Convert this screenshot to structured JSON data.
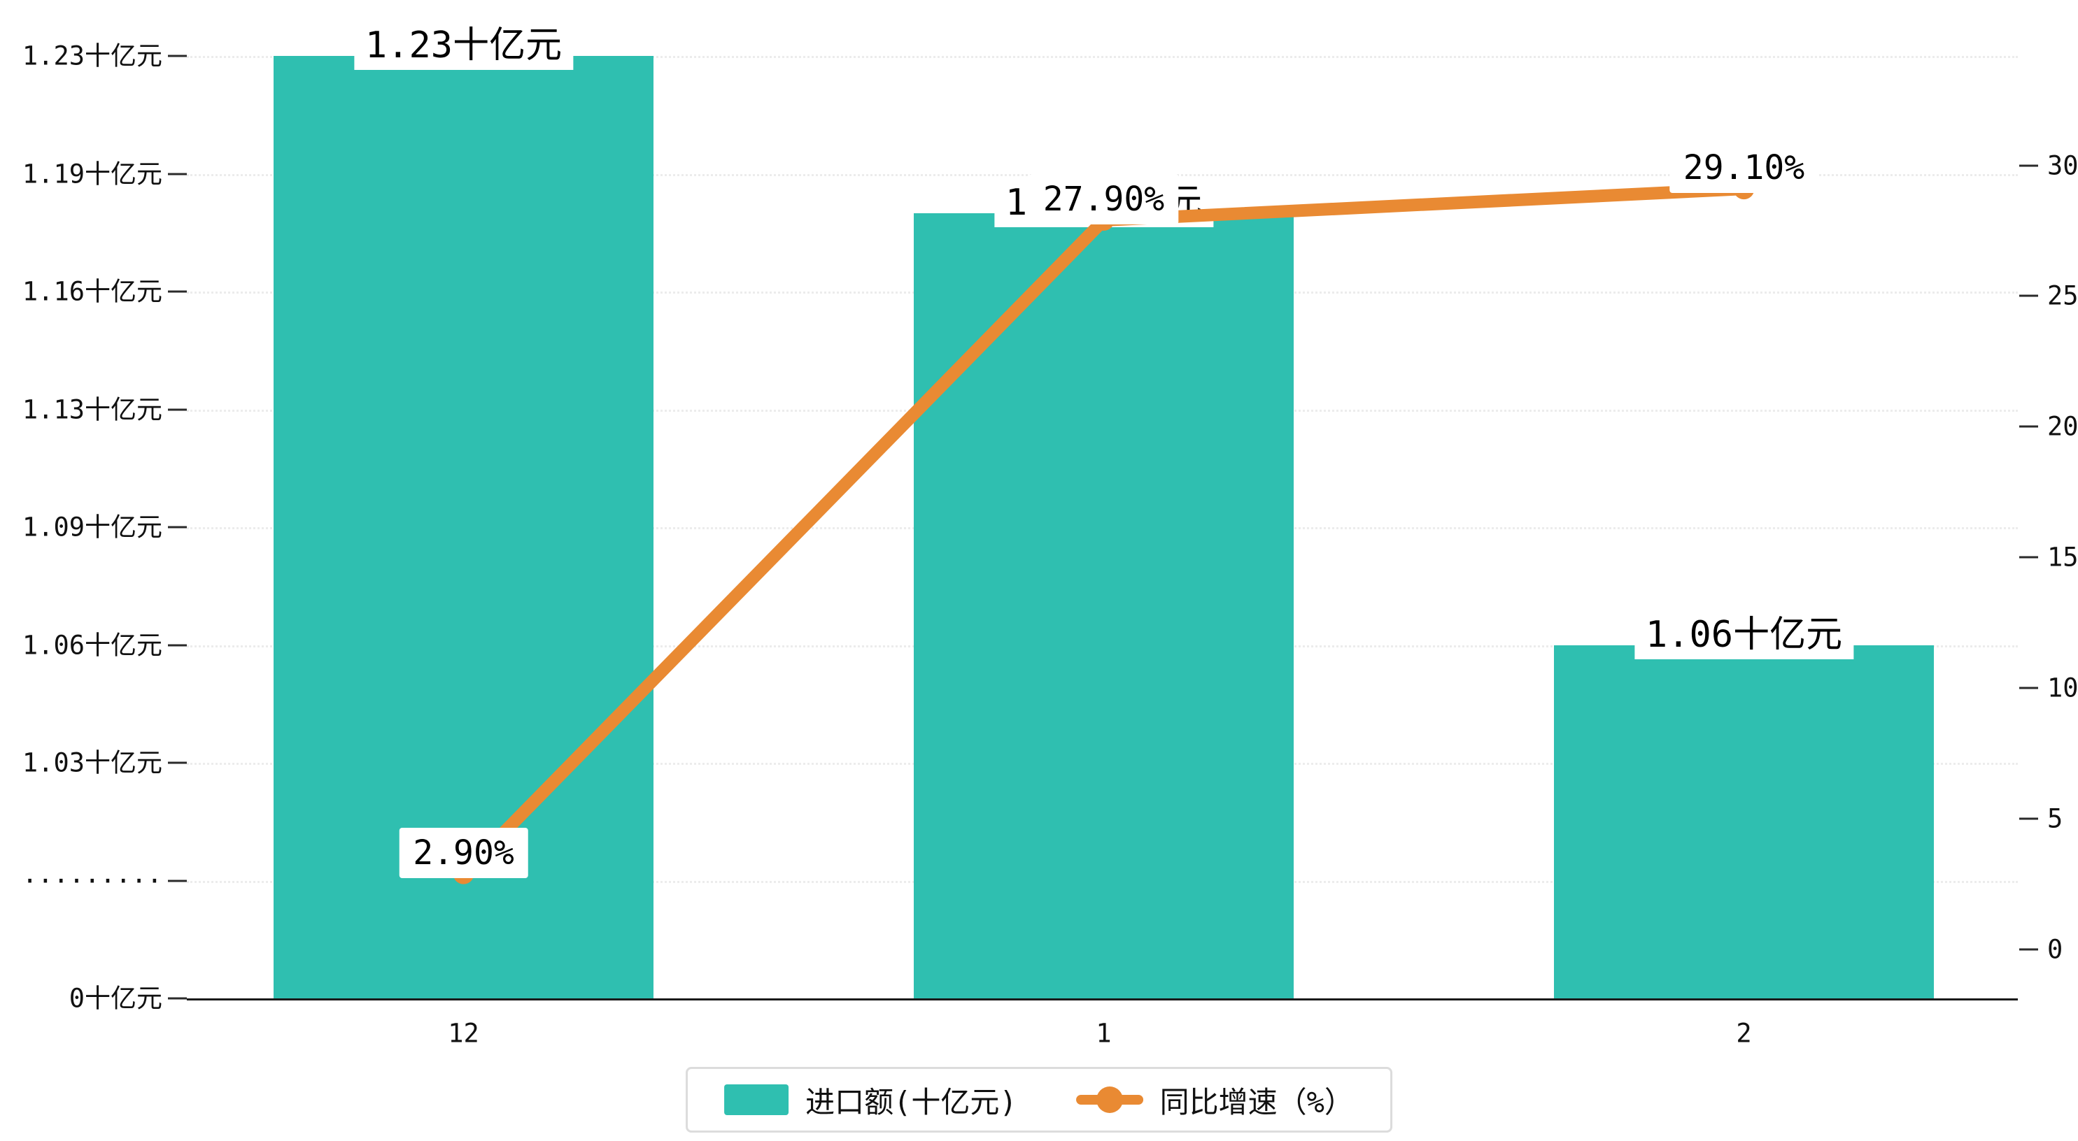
{
  "chart_data": {
    "type": "bar",
    "combo": "bar+line-dual-axis",
    "title": "",
    "categories": [
      "12",
      "1",
      "2"
    ],
    "series": [
      {
        "name": "进口额(十亿元)",
        "type": "bar",
        "axis": "left",
        "values": [
          1.23,
          1.18,
          1.06
        ],
        "data_labels": [
          "1.23十亿元",
          "1.18十亿元",
          "1.06十亿元"
        ],
        "color": "#2fbfb0"
      },
      {
        "name": "同比增速（%）",
        "type": "line",
        "axis": "right",
        "values": [
          2.9,
          27.9,
          29.1
        ],
        "data_labels": [
          "2.90%",
          "27.90%",
          "29.10%"
        ],
        "color": "#e98a33"
      }
    ],
    "left_axis": {
      "tick_labels": [
        "1.23十亿元",
        "1.19十亿元",
        "1.16十亿元",
        "1.13十亿元",
        "1.09十亿元",
        "1.06十亿元",
        "1.03十亿元",
        "·········",
        "0十亿元"
      ],
      "broken_axis": true
    },
    "right_axis": {
      "tick_labels": [
        "30",
        "25",
        "20",
        "15",
        "10",
        "5",
        "0"
      ],
      "range": [
        0,
        30
      ]
    },
    "x_axis": {
      "tick_labels": [
        "12",
        "1",
        "2"
      ]
    },
    "legend": {
      "items": [
        "进口额(十亿元)",
        "同比增速（%）"
      ],
      "position": "bottom-center"
    },
    "grid": true
  },
  "colors": {
    "bar": "#2fbfb0",
    "line": "#e98a33",
    "axis_text": "#111111",
    "grid_line": "#ececec",
    "label_bg": "#ffffff",
    "legend_border": "#dcdcdc"
  }
}
